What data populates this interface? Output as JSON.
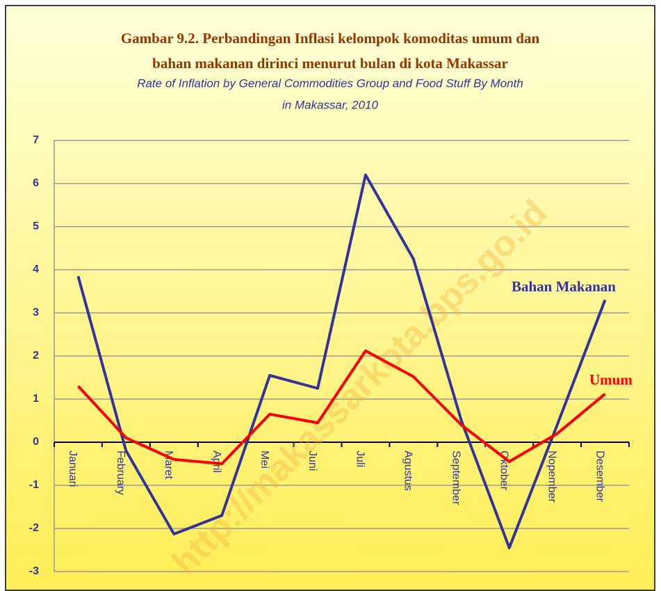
{
  "chart_data": {
    "type": "line",
    "title": [
      "Gambar 9.2. Perbandingan Inflasi kelompok komoditas umum dan",
      "bahan makanan dirinci menurut bulan di kota Makassar"
    ],
    "subtitle": [
      "Rate of Inflation by General Commodities Group and Food Stuff By Month",
      "in Makassar, 2010"
    ],
    "watermark": "http://makassarkota.bps.go.id",
    "categories": [
      "Januari",
      "February",
      "Maret",
      "April",
      "Mei",
      "Juni",
      "Juli",
      "Agustus",
      "September",
      "Oktober",
      "Nopember",
      "Desember"
    ],
    "series": [
      {
        "name": "Bahan Makanan",
        "color": "#333399",
        "values": [
          3.85,
          -0.2,
          -2.13,
          -1.7,
          1.55,
          1.25,
          6.2,
          4.25,
          0.5,
          -2.45,
          0.4,
          3.3
        ]
      },
      {
        "name": "Umum",
        "color": "#ff0000",
        "values": [
          1.3,
          0.1,
          -0.4,
          -0.5,
          0.65,
          0.45,
          2.12,
          1.52,
          0.4,
          -0.45,
          0.2,
          1.12
        ]
      }
    ],
    "ylim": [
      -3,
      7
    ],
    "yticks": [
      -3,
      -2,
      -1,
      0,
      1,
      2,
      3,
      4,
      5,
      6,
      7
    ],
    "grid": true
  }
}
